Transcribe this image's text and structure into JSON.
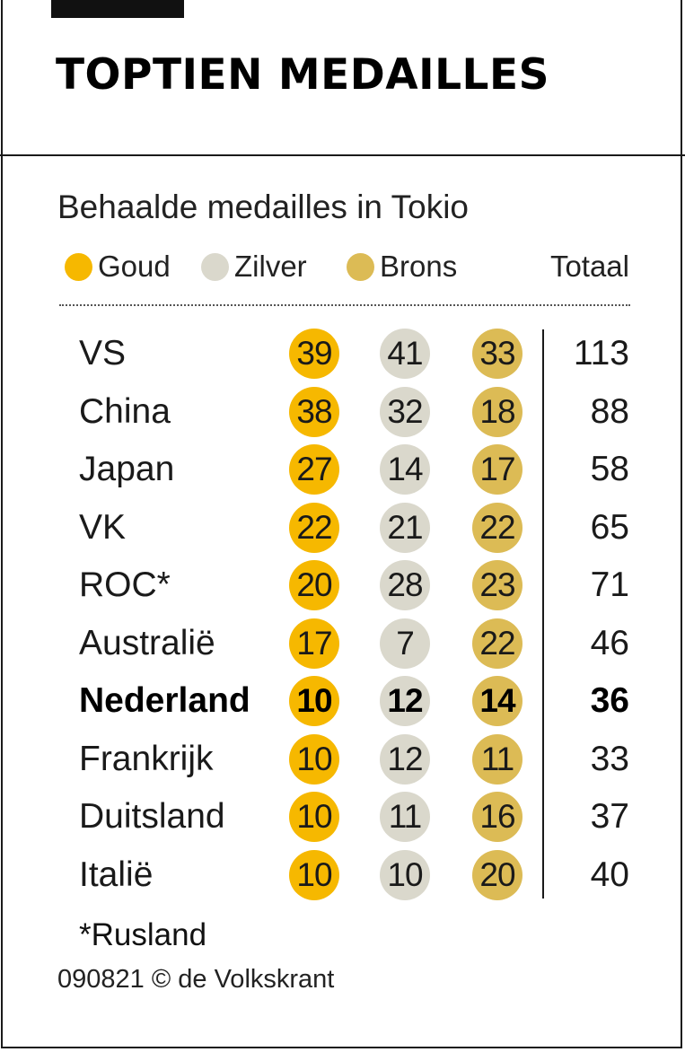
{
  "header": {
    "title": "TOPTIEN MEDAILLES"
  },
  "colors": {
    "gold": "#f6b800",
    "silver": "#dad8cc",
    "bronze": "#dcbb55"
  },
  "chart_data": {
    "type": "table",
    "title": "TOPTIEN MEDAILLES",
    "subtitle": "Behaalde medailles in Tokio",
    "legend": {
      "gold": "Goud",
      "silver": "Zilver",
      "bronze": "Brons",
      "total": "Totaal"
    },
    "columns": [
      "Goud",
      "Zilver",
      "Brons",
      "Totaal"
    ],
    "rows": [
      {
        "country": "VS",
        "gold": 39,
        "silver": 41,
        "bronze": 33,
        "total": 113,
        "highlight": false
      },
      {
        "country": "China",
        "gold": 38,
        "silver": 32,
        "bronze": 18,
        "total": 88,
        "highlight": false
      },
      {
        "country": "Japan",
        "gold": 27,
        "silver": 14,
        "bronze": 17,
        "total": 58,
        "highlight": false
      },
      {
        "country": "VK",
        "gold": 22,
        "silver": 21,
        "bronze": 22,
        "total": 65,
        "highlight": false
      },
      {
        "country": "ROC*",
        "gold": 20,
        "silver": 28,
        "bronze": 23,
        "total": 71,
        "highlight": false
      },
      {
        "country": "Australië",
        "gold": 17,
        "silver": 7,
        "bronze": 22,
        "total": 46,
        "highlight": false
      },
      {
        "country": "Nederland",
        "gold": 10,
        "silver": 12,
        "bronze": 14,
        "total": 36,
        "highlight": true
      },
      {
        "country": "Frankrijk",
        "gold": 10,
        "silver": 12,
        "bronze": 11,
        "total": 33,
        "highlight": false
      },
      {
        "country": "Duitsland",
        "gold": 10,
        "silver": 11,
        "bronze": 16,
        "total": 37,
        "highlight": false
      },
      {
        "country": "Italië",
        "gold": 10,
        "silver": 10,
        "bronze": 20,
        "total": 40,
        "highlight": false
      }
    ],
    "footnote": "*Rusland",
    "credit": "090821 © de Volkskrant"
  }
}
